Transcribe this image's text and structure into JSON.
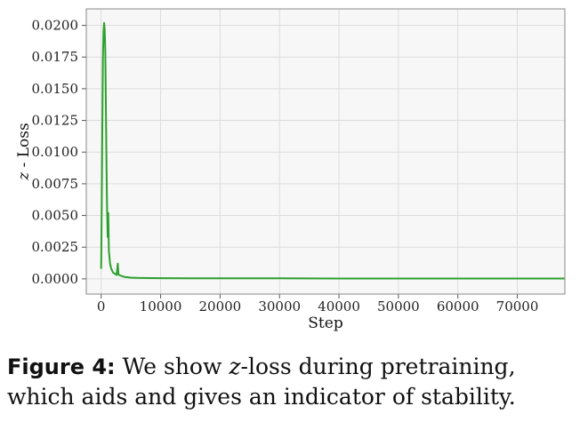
{
  "chart_data": {
    "type": "line",
    "xlabel": "Step",
    "ylabel_symbol": "z",
    "ylabel_rest": " - Loss",
    "xlim": [
      -2500,
      78000
    ],
    "ylim": [
      -0.0012,
      0.0213
    ],
    "xticks": [
      0,
      10000,
      20000,
      30000,
      40000,
      50000,
      60000,
      70000
    ],
    "xtick_labels": [
      "0",
      "10000",
      "20000",
      "30000",
      "40000",
      "50000",
      "60000",
      "70000"
    ],
    "yticks": [
      0.0,
      0.0025,
      0.005,
      0.0075,
      0.01,
      0.0125,
      0.015,
      0.0175,
      0.02
    ],
    "ytick_labels": [
      "0.0000",
      "0.0025",
      "0.0050",
      "0.0075",
      "0.0100",
      "0.0125",
      "0.0150",
      "0.0175",
      "0.0200"
    ],
    "grid": true,
    "series": [
      {
        "color": "#2ca02c",
        "x": [
          0,
          100,
          200,
          300,
          400,
          500,
          600,
          700,
          800,
          900,
          1000,
          1100,
          1200,
          1300,
          1400,
          1500,
          1700,
          2000,
          2300,
          2600,
          2800,
          2900,
          3000,
          3300,
          3600,
          4000,
          5000,
          6000,
          8000,
          10000,
          15000,
          20000,
          30000,
          40000,
          50000,
          60000,
          70000,
          78000
        ],
        "y": [
          0.0008,
          0.006,
          0.012,
          0.0175,
          0.0195,
          0.0202,
          0.0196,
          0.018,
          0.0135,
          0.009,
          0.0055,
          0.0033,
          0.0052,
          0.0022,
          0.0017,
          0.0012,
          0.0008,
          0.0005,
          0.0004,
          0.0003,
          0.0012,
          0.0004,
          0.0003,
          0.00025,
          0.0002,
          0.00015,
          0.0001,
          8e-05,
          6e-05,
          5e-05,
          4e-05,
          4e-05,
          4e-05,
          3e-05,
          3e-05,
          3e-05,
          3e-05,
          3e-05
        ]
      }
    ]
  },
  "caption": {
    "label": "Figure 4:",
    "text_before": " We show ",
    "z": "z",
    "text_after": "-loss during pretraining, which aids and gives an indicator of stability."
  },
  "colors": {
    "plot_bg": "#f7f7f7",
    "grid": "#dddddd",
    "frame": "#888888"
  }
}
